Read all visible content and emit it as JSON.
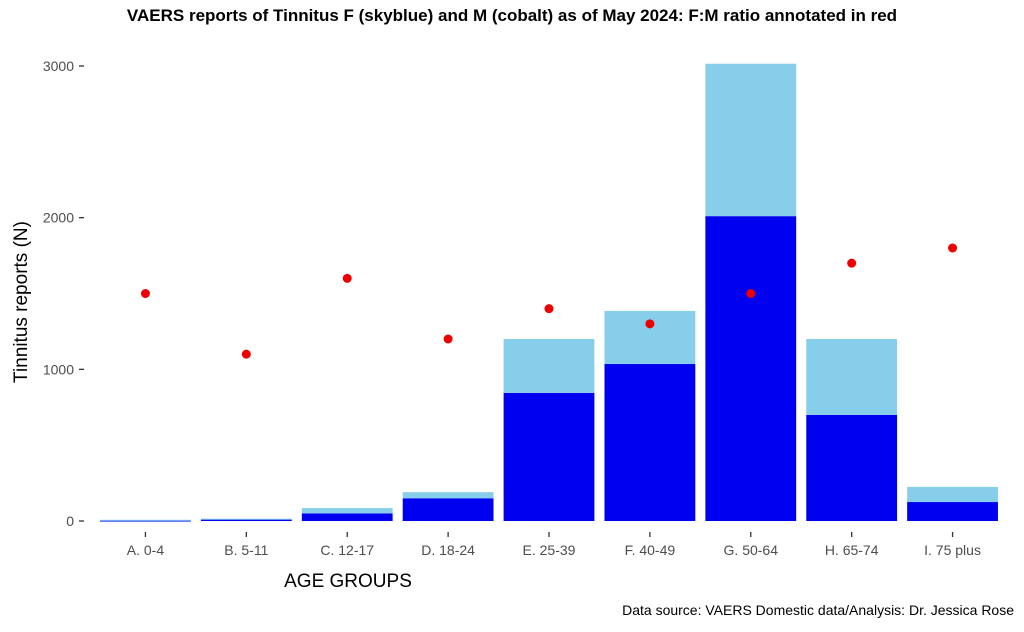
{
  "chart_data": {
    "type": "bar",
    "stacked": true,
    "title": "VAERS reports of Tinnitus F (skyblue) and M (cobalt) as of May 2024: F:M ratio annotated in red",
    "caption": "Data source: VAERS Domestic data/Analysis: Dr. Jessica Rose",
    "xlabel": "AGE GROUPS",
    "ylabel": "Tinnitus reports (N)",
    "ylim": [
      0,
      3000
    ],
    "yticks": [
      "0",
      "1000",
      "2000",
      "3000"
    ],
    "categories": [
      "A. 0-4",
      "B. 5-11",
      "C. 12-17",
      "D. 18-24",
      "E. 25-39",
      "F. 40-49",
      "G. 50-64",
      "H. 65-74",
      "I. 75 plus"
    ],
    "series": [
      {
        "key": "M",
        "color": "#0000F0",
        "values": [
          3,
          10,
          50,
          150,
          845,
          1035,
          2010,
          700,
          125
        ]
      },
      {
        "key": "F",
        "color": "#87CEEB",
        "values": [
          5,
          5,
          35,
          40,
          355,
          350,
          1005,
          500,
          100
        ]
      }
    ],
    "ratio_points": {
      "color": "#EE0000",
      "values": [
        1500,
        1100,
        1600,
        1200,
        1400,
        1300,
        1500,
        1700,
        1800
      ]
    },
    "grid": false,
    "legend": "none"
  }
}
